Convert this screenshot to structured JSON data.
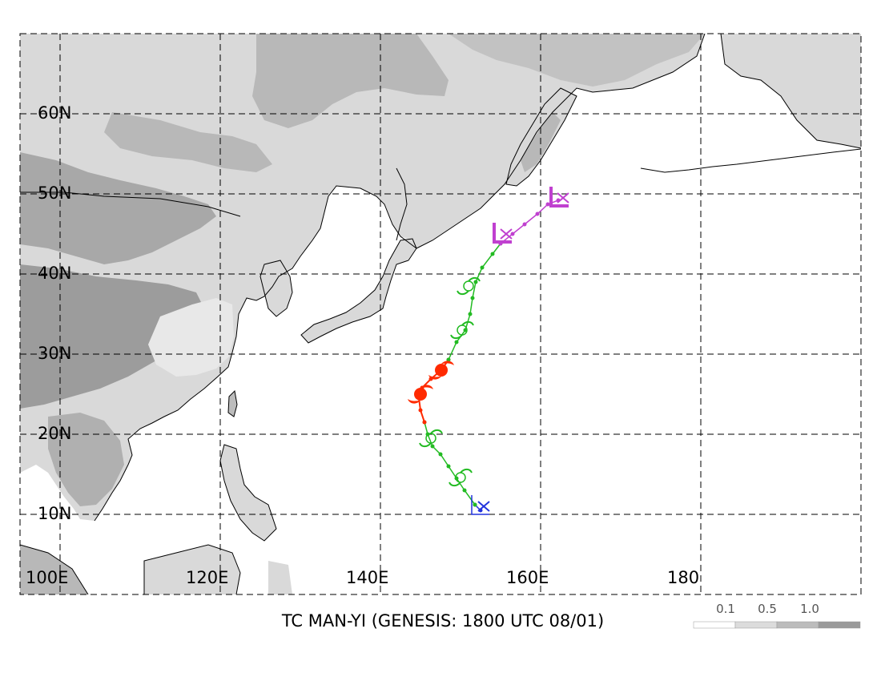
{
  "title": "TC MAN-YI (GENESIS: 1800 UTC 08/01)",
  "lat_labels": [
    "60N",
    "50N",
    "40N",
    "30N",
    "20N",
    "10N"
  ],
  "lon_labels": [
    "100E",
    "120E",
    "140E",
    "160E",
    "180"
  ],
  "legend": {
    "labels": [
      "0.1",
      "0.5",
      "1.0"
    ],
    "colors": [
      "#ffffff",
      "#dcdcdc",
      "#bcbcbc",
      "#9a9a9a"
    ]
  },
  "colors": {
    "light_terrain": "#d9d9d9",
    "mid_terrain": "#b8b8b8",
    "dark_terrain": "#9c9c9c",
    "ocean": "#ffffff",
    "tropical_storm": "#22bb22",
    "typhoon": "#ff2a00",
    "extratropical": "#c040d0",
    "depression": "#2233dd"
  },
  "track": {
    "depression": [
      [
        152.5,
        10.5
      ],
      [
        151.8,
        11.2
      ]
    ],
    "tropical_storm_1": [
      [
        151.8,
        11.2
      ],
      [
        150.5,
        13.0
      ],
      [
        149.5,
        14.5
      ],
      [
        148.5,
        16.0
      ],
      [
        147.5,
        17.5
      ],
      [
        146.5,
        18.5
      ],
      [
        145.9,
        20.0
      ],
      [
        145.5,
        21.5
      ]
    ],
    "typhoon": [
      [
        145.5,
        21.5
      ],
      [
        145.0,
        23.0
      ],
      [
        144.8,
        24.5
      ],
      [
        145.2,
        25.8
      ],
      [
        146.3,
        26.9
      ],
      [
        147.6,
        28.0
      ],
      [
        148.5,
        29.3
      ]
    ],
    "tropical_storm_2": [
      [
        148.5,
        29.3
      ],
      [
        149.5,
        31.5
      ],
      [
        150.6,
        33.0
      ],
      [
        151.2,
        35.0
      ],
      [
        151.5,
        37.0
      ],
      [
        151.9,
        39.0
      ],
      [
        152.7,
        40.8
      ],
      [
        154.0,
        42.5
      ],
      [
        155.0,
        43.8
      ]
    ],
    "extratropical": [
      [
        155.0,
        43.8
      ],
      [
        156.5,
        45.0
      ],
      [
        158.0,
        46.2
      ],
      [
        159.6,
        47.5
      ],
      [
        160.9,
        48.7
      ],
      [
        162.2,
        49.2
      ]
    ]
  },
  "symbols": {
    "depression": [
      [
        152.4,
        10.8
      ]
    ],
    "tropical_storm": [
      [
        150.0,
        14.6
      ],
      [
        146.3,
        19.5
      ],
      [
        150.2,
        33.0
      ],
      [
        151.0,
        38.5
      ]
    ],
    "typhoon": [
      [
        145.0,
        25.0
      ],
      [
        147.6,
        28.0
      ]
    ],
    "extratropical": [
      [
        155.2,
        44.8
      ],
      [
        162.3,
        49.3
      ]
    ]
  }
}
